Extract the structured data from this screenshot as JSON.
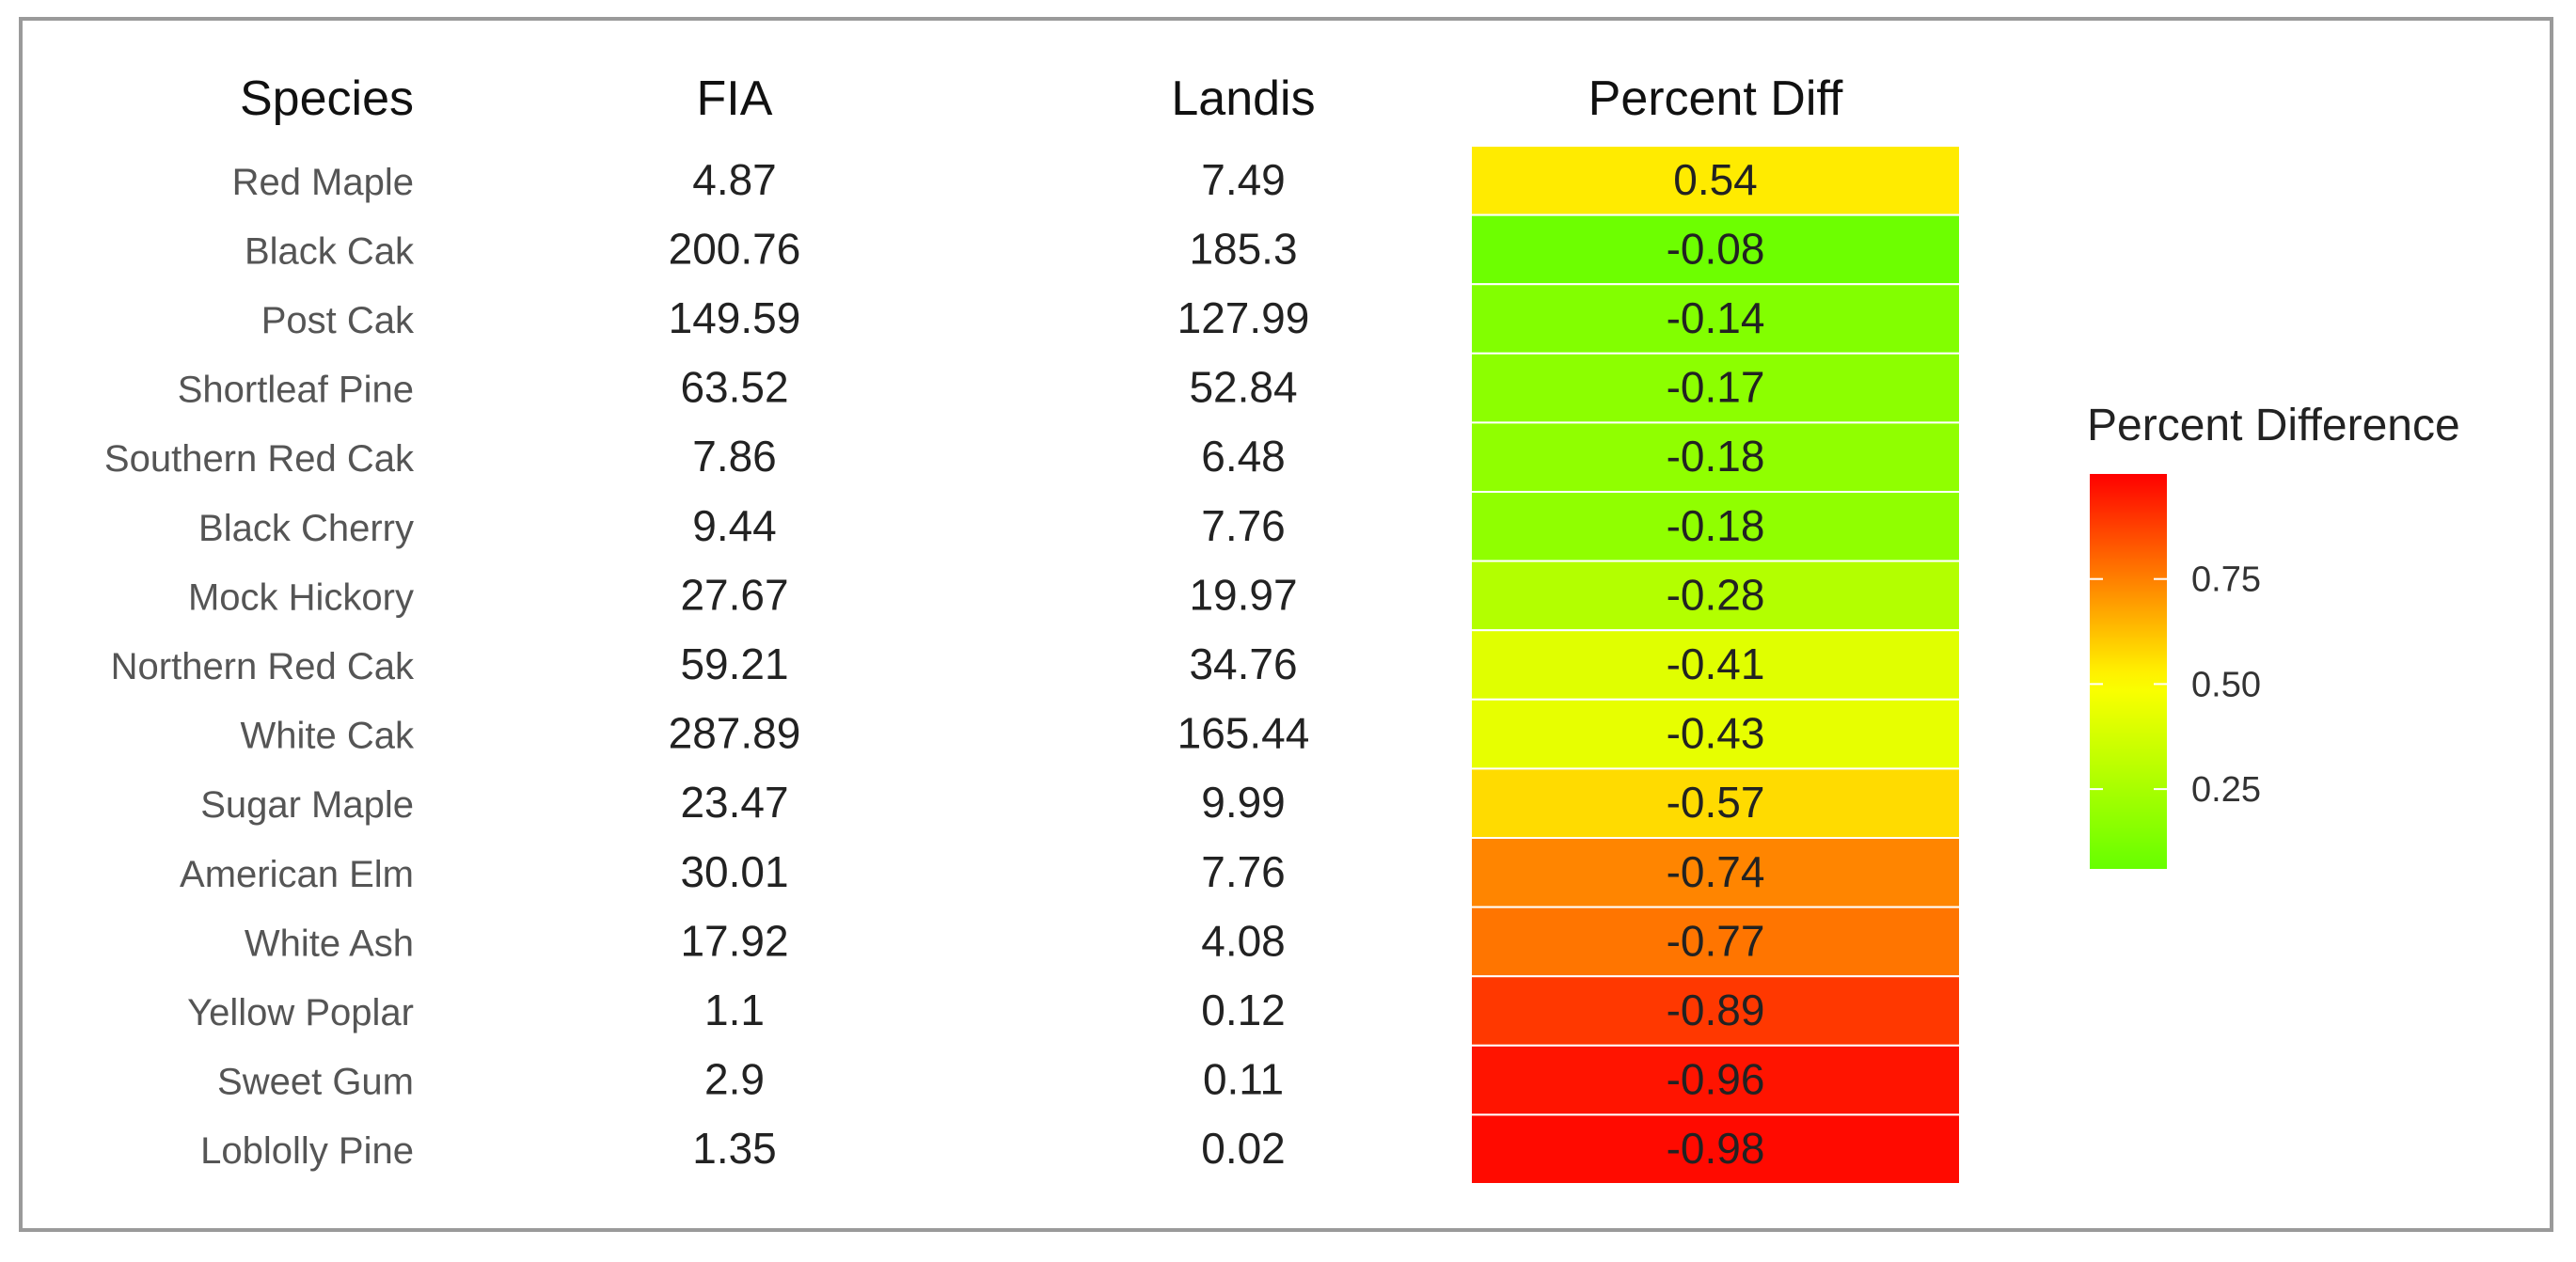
{
  "chart_data": {
    "type": "table",
    "columns": [
      "Species",
      "FIA",
      "Landis",
      "Percent Diff"
    ],
    "rows": [
      {
        "species": "Red Maple",
        "fia": "4.87",
        "landis": "7.49",
        "diff": "0.54"
      },
      {
        "species": "Black Cak",
        "fia": "200.76",
        "landis": "185.3",
        "diff": "-0.08"
      },
      {
        "species": "Post Cak",
        "fia": "149.59",
        "landis": "127.99",
        "diff": "-0.14"
      },
      {
        "species": "Shortleaf Pine",
        "fia": "63.52",
        "landis": "52.84",
        "diff": "-0.17"
      },
      {
        "species": "Southern Red Cak",
        "fia": "7.86",
        "landis": "6.48",
        "diff": "-0.18"
      },
      {
        "species": "Black Cherry",
        "fia": "9.44",
        "landis": "7.76",
        "diff": "-0.18"
      },
      {
        "species": "Mock Hickory",
        "fia": "27.67",
        "landis": "19.97",
        "diff": "-0.28"
      },
      {
        "species": "Northern Red Cak",
        "fia": "59.21",
        "landis": "34.76",
        "diff": "-0.41"
      },
      {
        "species": "White Cak",
        "fia": "287.89",
        "landis": "165.44",
        "diff": "-0.43"
      },
      {
        "species": "Sugar Maple",
        "fia": "23.47",
        "landis": "9.99",
        "diff": "-0.57"
      },
      {
        "species": "American Elm",
        "fia": "30.01",
        "landis": "7.76",
        "diff": "-0.74"
      },
      {
        "species": "White Ash",
        "fia": "17.92",
        "landis": "4.08",
        "diff": "-0.77"
      },
      {
        "species": "Yellow Poplar",
        "fia": "1.1",
        "landis": "0.12",
        "diff": "-0.89"
      },
      {
        "species": "Sweet Gum",
        "fia": "2.9",
        "landis": "0.11",
        "diff": "-0.96"
      },
      {
        "species": "Loblolly Pine",
        "fia": "1.35",
        "landis": "0.02",
        "diff": "-0.98"
      }
    ],
    "legend": {
      "title": "Percent Difference",
      "ticks": [
        "0.75",
        "0.50",
        "0.25"
      ],
      "tick_values": [
        0.75,
        0.5,
        0.25
      ],
      "range": [
        0.06,
        1.0
      ],
      "low_color": "#66ff00",
      "mid_color": "#ffff00",
      "high_color": "#ff0000",
      "placement": "right"
    }
  }
}
